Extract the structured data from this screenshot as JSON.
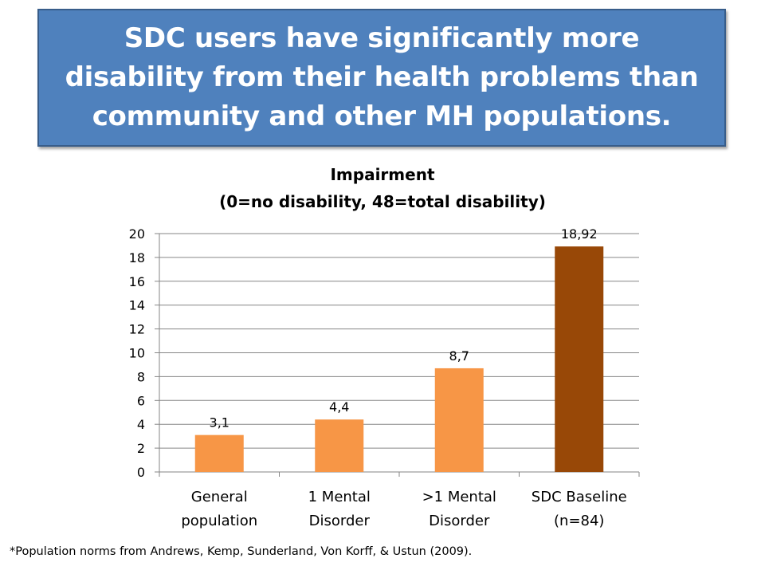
{
  "slide": {
    "title": "SDC users have significantly more disability from their health problems than community and other MH populations.",
    "footnote": "*Population norms from Andrews, Kemp, Sunderland, Von Korff, & Ustun (2009)."
  },
  "colors": {
    "title_fill": "#4f81bd",
    "bar_orange": "#f79646",
    "bar_brown": "#984807",
    "gridline": "#868686"
  },
  "chart_data": {
    "type": "bar",
    "title": "Impairment",
    "subtitle": "(0=no disability, 48=total disability)",
    "categories": [
      [
        "General",
        "population"
      ],
      [
        "1 Mental",
        "Disorder"
      ],
      [
        ">1 Mental",
        "Disorder"
      ],
      [
        "SDC Baseline",
        "(n=84)"
      ]
    ],
    "values": [
      3.1,
      4.4,
      8.7,
      18.92
    ],
    "value_labels": [
      "3,1",
      "4,4",
      "8,7",
      "18,92"
    ],
    "bar_colors": [
      "#f79646",
      "#f79646",
      "#f79646",
      "#984807"
    ],
    "ylim": [
      0,
      20
    ],
    "yticks": [
      0,
      2,
      4,
      6,
      8,
      10,
      12,
      14,
      16,
      18,
      20
    ],
    "grid": true,
    "legend": "none"
  }
}
